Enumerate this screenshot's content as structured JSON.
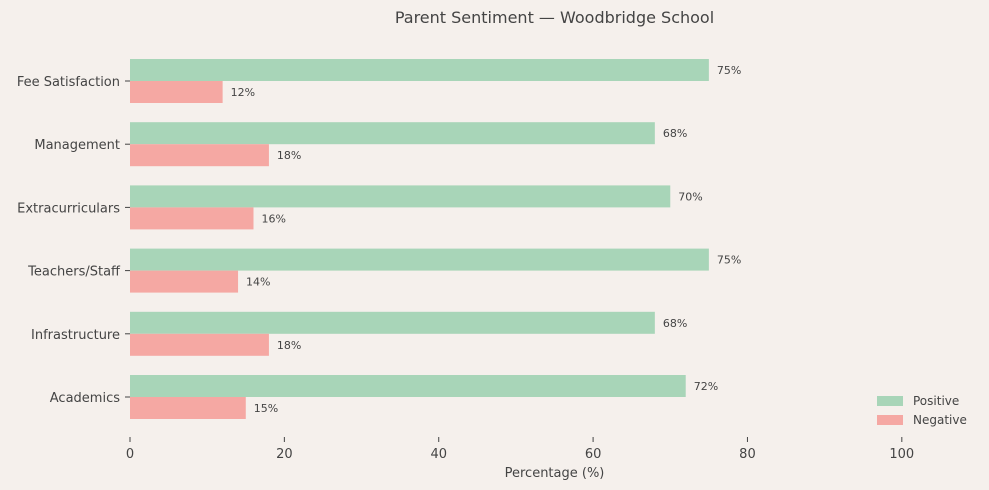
{
  "chart_data": {
    "type": "bar",
    "orientation": "horizontal",
    "title": "Parent Sentiment — Woodbridge School",
    "xlabel": "Percentage (%)",
    "ylabel": "",
    "xlim": [
      0,
      110
    ],
    "xticks": [
      0,
      20,
      40,
      60,
      80,
      100
    ],
    "grid": false,
    "legend_position": "bottom-right",
    "categories": [
      "Fee Satisfaction",
      "Management",
      "Extracurriculars",
      "Teachers/Staff",
      "Infrastructure",
      "Academics"
    ],
    "series": [
      {
        "name": "Positive",
        "color": "#a8d5b8",
        "values": [
          75,
          68,
          70,
          75,
          68,
          72
        ]
      },
      {
        "name": "Negative",
        "color": "#f5a8a3",
        "values": [
          12,
          18,
          16,
          14,
          18,
          15
        ]
      }
    ],
    "label_suffix": "%"
  }
}
